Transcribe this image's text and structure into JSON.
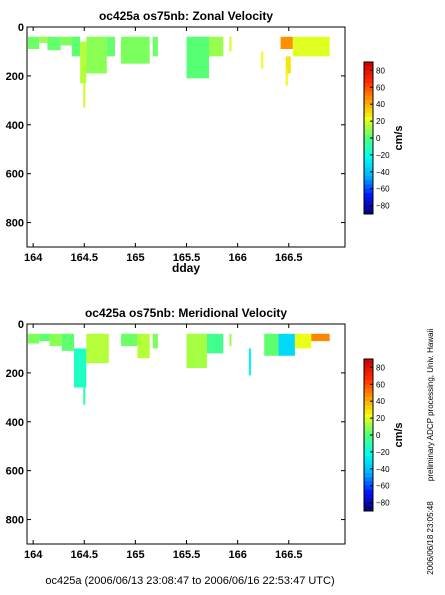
{
  "chart_data": [
    {
      "type": "heatmap",
      "title": "oc425a os75nb: Zonal Velocity",
      "xlabel": "dday",
      "ylabel": "",
      "xlim": [
        163.94,
        167.05
      ],
      "ylim": [
        900,
        0
      ],
      "xticks": [
        164,
        164.5,
        165,
        165.5,
        166,
        166.5
      ],
      "xtick_labels": [
        "164",
        "164.5",
        "165",
        "165.5",
        "166",
        "166.5"
      ],
      "yticks": [
        0,
        200,
        400,
        600,
        800
      ],
      "ytick_labels": [
        "0",
        "200",
        "400",
        "600",
        "800"
      ],
      "colorbar": {
        "label": "cm/s",
        "range": [
          -90,
          90
        ],
        "ticks": [
          80,
          60,
          40,
          20,
          0,
          -20,
          -40,
          -60,
          -80
        ],
        "tick_labels": [
          "80",
          "60",
          "40",
          "20",
          "0",
          "−20",
          "−40",
          "−60",
          "−80"
        ]
      },
      "cells": [
        {
          "x0": 163.95,
          "x1": 164.06,
          "d0": 40,
          "d1": 90,
          "value": 4
        },
        {
          "x0": 164.06,
          "x1": 164.14,
          "d0": 40,
          "d1": 65,
          "value": 10
        },
        {
          "x0": 164.14,
          "x1": 164.27,
          "d0": 40,
          "d1": 95,
          "value": 3
        },
        {
          "x0": 164.27,
          "x1": 164.38,
          "d0": 40,
          "d1": 75,
          "value": 6
        },
        {
          "x0": 164.38,
          "x1": 164.46,
          "d0": 40,
          "d1": 120,
          "value": 2
        },
        {
          "x0": 164.46,
          "x1": 164.52,
          "d0": 60,
          "d1": 230,
          "value": 14
        },
        {
          "x0": 164.52,
          "x1": 164.72,
          "d0": 40,
          "d1": 190,
          "value": 8
        },
        {
          "x0": 164.72,
          "x1": 164.8,
          "d0": 40,
          "d1": 120,
          "value": 3
        },
        {
          "x0": 164.86,
          "x1": 165.14,
          "d0": 40,
          "d1": 150,
          "value": 6
        },
        {
          "x0": 165.17,
          "x1": 165.22,
          "d0": 40,
          "d1": 120,
          "value": 4
        },
        {
          "x0": 165.5,
          "x1": 165.72,
          "d0": 40,
          "d1": 210,
          "value": 1
        },
        {
          "x0": 165.72,
          "x1": 165.86,
          "d0": 40,
          "d1": 120,
          "value": 10
        },
        {
          "x0": 165.92,
          "x1": 165.94,
          "d0": 40,
          "d1": 100,
          "value": 18
        },
        {
          "x0": 166.42,
          "x1": 166.54,
          "d0": 40,
          "d1": 90,
          "value": 46
        },
        {
          "x0": 166.54,
          "x1": 166.9,
          "d0": 40,
          "d1": 120,
          "value": 20
        },
        {
          "x0": 166.23,
          "x1": 166.25,
          "d0": 100,
          "d1": 170,
          "value": 22
        },
        {
          "x0": 166.47,
          "x1": 166.52,
          "d0": 120,
          "d1": 190,
          "value": 28
        },
        {
          "x0": 164.49,
          "x1": 164.51,
          "d0": 230,
          "d1": 330,
          "value": 18
        },
        {
          "x0": 166.47,
          "x1": 166.49,
          "d0": 170,
          "d1": 240,
          "value": 24
        }
      ]
    },
    {
      "type": "heatmap",
      "title": "oc425a os75nb: Meridional Velocity",
      "xlabel": "",
      "ylabel": "",
      "xlim": [
        163.94,
        167.05
      ],
      "ylim": [
        900,
        0
      ],
      "xticks": [
        164,
        164.5,
        165,
        165.5,
        166,
        166.5
      ],
      "xtick_labels": [
        "164",
        "164.5",
        "165",
        "165.5",
        "166",
        "166.5"
      ],
      "yticks": [
        0,
        200,
        400,
        600,
        800
      ],
      "ytick_labels": [
        "0",
        "200",
        "400",
        "600",
        "800"
      ],
      "colorbar": {
        "label": "cm/s",
        "range": [
          -90,
          90
        ],
        "ticks": [
          80,
          60,
          40,
          20,
          0,
          -20,
          -40,
          -60,
          -80
        ],
        "tick_labels": [
          "80",
          "60",
          "40",
          "20",
          "0",
          "−20",
          "−40",
          "−60",
          "−80"
        ]
      },
      "cells": [
        {
          "x0": 163.95,
          "x1": 164.06,
          "d0": 40,
          "d1": 80,
          "value": 6
        },
        {
          "x0": 164.06,
          "x1": 164.16,
          "d0": 40,
          "d1": 70,
          "value": 2
        },
        {
          "x0": 164.16,
          "x1": 164.28,
          "d0": 40,
          "d1": 90,
          "value": 8
        },
        {
          "x0": 164.28,
          "x1": 164.4,
          "d0": 40,
          "d1": 110,
          "value": 2
        },
        {
          "x0": 164.4,
          "x1": 164.52,
          "d0": 100,
          "d1": 260,
          "value": -14
        },
        {
          "x0": 164.52,
          "x1": 164.74,
          "d0": 40,
          "d1": 160,
          "value": 14
        },
        {
          "x0": 164.86,
          "x1": 165.02,
          "d0": 40,
          "d1": 90,
          "value": 4
        },
        {
          "x0": 165.02,
          "x1": 165.14,
          "d0": 40,
          "d1": 140,
          "value": 14
        },
        {
          "x0": 165.17,
          "x1": 165.22,
          "d0": 40,
          "d1": 100,
          "value": 6
        },
        {
          "x0": 165.5,
          "x1": 165.7,
          "d0": 40,
          "d1": 180,
          "value": 12
        },
        {
          "x0": 165.7,
          "x1": 165.86,
          "d0": 40,
          "d1": 120,
          "value": -4
        },
        {
          "x0": 165.92,
          "x1": 165.94,
          "d0": 40,
          "d1": 90,
          "value": 10
        },
        {
          "x0": 166.26,
          "x1": 166.4,
          "d0": 40,
          "d1": 130,
          "value": 2
        },
        {
          "x0": 166.4,
          "x1": 166.56,
          "d0": 40,
          "d1": 130,
          "value": -34
        },
        {
          "x0": 166.56,
          "x1": 166.72,
          "d0": 40,
          "d1": 100,
          "value": 22
        },
        {
          "x0": 166.72,
          "x1": 166.9,
          "d0": 40,
          "d1": 70,
          "value": 48
        },
        {
          "x0": 166.11,
          "x1": 166.13,
          "d0": 100,
          "d1": 210,
          "value": -26
        },
        {
          "x0": 164.49,
          "x1": 164.51,
          "d0": 260,
          "d1": 330,
          "value": -10
        }
      ]
    }
  ],
  "footer": {
    "time_range": "oc425a (2006/06/13 23:08:47 to 2006/06/16 22:53:47 UTC)",
    "credit": "preliminary ADCP processing,  Univ. Hawaii",
    "timestamp": "2006/06/18 23:05:48"
  },
  "colormap": [
    "#08006e",
    "#0018ff",
    "#00b4ff",
    "#00fff0",
    "#50ff78",
    "#f0ff14",
    "#ff9600",
    "#ff2800",
    "#c80000"
  ]
}
